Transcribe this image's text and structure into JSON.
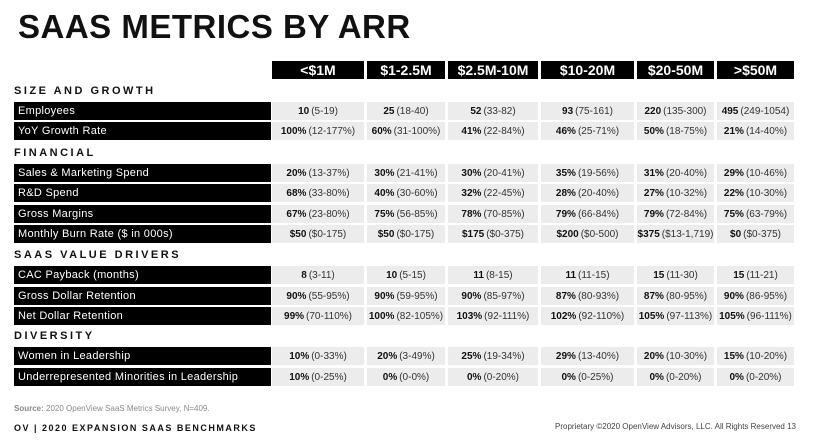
{
  "title": "SAAS METRICS BY ARR",
  "columns": [
    "<$1M",
    "$1-2.5M",
    "$2.5M-10M",
    "$10-20M",
    "$20-50M",
    ">$50M"
  ],
  "sections": [
    {
      "name": "SIZE AND GROWTH",
      "rows": [
        {
          "label": "Employees",
          "cells": [
            {
              "v": "10",
              "r": "(5-19)"
            },
            {
              "v": "25",
              "r": "(18-40)"
            },
            {
              "v": "52",
              "r": "(33-82)"
            },
            {
              "v": "93",
              "r": "(75-161)"
            },
            {
              "v": "220",
              "r": "(135-300)"
            },
            {
              "v": "495",
              "r": "(249-1054)"
            }
          ]
        },
        {
          "label": "YoY Growth Rate",
          "cells": [
            {
              "v": "100%",
              "r": "(12-177%)"
            },
            {
              "v": "60%",
              "r": "(31-100%)"
            },
            {
              "v": "41%",
              "r": "(22-84%)"
            },
            {
              "v": "46%",
              "r": "(25-71%)"
            },
            {
              "v": "50%",
              "r": "(18-75%)"
            },
            {
              "v": "21%",
              "r": "(14-40%)"
            }
          ]
        }
      ]
    },
    {
      "name": "FINANCIAL",
      "rows": [
        {
          "label": "Sales & Marketing Spend",
          "cells": [
            {
              "v": "20%",
              "r": "(13-37%)"
            },
            {
              "v": "30%",
              "r": "(21-41%)"
            },
            {
              "v": "30%",
              "r": "(20-41%)"
            },
            {
              "v": "35%",
              "r": "(19-56%)"
            },
            {
              "v": "31%",
              "r": "(20-40%)"
            },
            {
              "v": "29%",
              "r": "(10-46%)"
            }
          ]
        },
        {
          "label": "R&D Spend",
          "cells": [
            {
              "v": "68%",
              "r": "(33-80%)"
            },
            {
              "v": "40%",
              "r": "(30-60%)"
            },
            {
              "v": "32%",
              "r": "(22-45%)"
            },
            {
              "v": "28%",
              "r": "(20-40%)"
            },
            {
              "v": "27%",
              "r": "(10-32%)"
            },
            {
              "v": "22%",
              "r": "(10-30%)"
            }
          ]
        },
        {
          "label": "Gross Margins",
          "cells": [
            {
              "v": "67%",
              "r": "(23-80%)"
            },
            {
              "v": "75%",
              "r": "(56-85%)"
            },
            {
              "v": "78%",
              "r": "(70-85%)"
            },
            {
              "v": "79%",
              "r": "(66-84%)"
            },
            {
              "v": "79%",
              "r": "(72-84%)"
            },
            {
              "v": "75%",
              "r": "(63-79%)"
            }
          ]
        },
        {
          "label": "Monthly Burn Rate ($ in 000s)",
          "cells": [
            {
              "v": "$50",
              "r": "($0-175)"
            },
            {
              "v": "$50",
              "r": "($0-175)"
            },
            {
              "v": "$175",
              "r": "($0-375)"
            },
            {
              "v": "$200",
              "r": "($0-500)"
            },
            {
              "v": "$375",
              "r": "($13-1,719)"
            },
            {
              "v": "$0",
              "r": "($0-375)"
            }
          ]
        }
      ]
    },
    {
      "name": "SAAS VALUE DRIVERS",
      "rows": [
        {
          "label": "CAC Payback (months)",
          "cells": [
            {
              "v": "8",
              "r": "(3-11)"
            },
            {
              "v": "10",
              "r": "(5-15)"
            },
            {
              "v": "11",
              "r": "(8-15)"
            },
            {
              "v": "11",
              "r": "(11-15)"
            },
            {
              "v": "15",
              "r": "(11-30)"
            },
            {
              "v": "15",
              "r": "(11-21)"
            }
          ]
        },
        {
          "label": "Gross Dollar Retention",
          "cells": [
            {
              "v": "90%",
              "r": "(55-95%)"
            },
            {
              "v": "90%",
              "r": "(59-95%)"
            },
            {
              "v": "90%",
              "r": "(85-97%)"
            },
            {
              "v": "87%",
              "r": "(80-93%)"
            },
            {
              "v": "87%",
              "r": "(80-95%)"
            },
            {
              "v": "90%",
              "r": "(86-95%)"
            }
          ]
        },
        {
          "label": "Net Dollar Retention",
          "cells": [
            {
              "v": "99%",
              "r": "(70-110%)"
            },
            {
              "v": "100%",
              "r": "(82-105%)"
            },
            {
              "v": "103%",
              "r": "(92-111%)"
            },
            {
              "v": "102%",
              "r": "(92-110%)"
            },
            {
              "v": "105%",
              "r": "(97-113%)"
            },
            {
              "v": "105%",
              "r": "(96-111%)"
            }
          ]
        }
      ]
    },
    {
      "name": "DIVERSITY",
      "rows": [
        {
          "label": "Women in Leadership",
          "cells": [
            {
              "v": "10%",
              "r": "(0-33%)"
            },
            {
              "v": "20%",
              "r": "(3-49%)"
            },
            {
              "v": "25%",
              "r": "(19-34%)"
            },
            {
              "v": "29%",
              "r": "(13-40%)"
            },
            {
              "v": "20%",
              "r": "(10-30%)"
            },
            {
              "v": "15%",
              "r": "(10-20%)"
            }
          ]
        },
        {
          "label": "Underrepresented Minorities in Leadership",
          "cells": [
            {
              "v": "10%",
              "r": "(0-25%)"
            },
            {
              "v": "0%",
              "r": "(0-0%)"
            },
            {
              "v": "0%",
              "r": "(0-20%)"
            },
            {
              "v": "0%",
              "r": "(0-25%)"
            },
            {
              "v": "0%",
              "r": "(0-20%)"
            },
            {
              "v": "0%",
              "r": "(0-20%)"
            }
          ]
        }
      ]
    }
  ],
  "source_label": "Source:",
  "source_text": "2020 OpenView SaaS Metrics Survey, N=409.",
  "footer_left": "OV | 2020 EXPANSION SAAS BENCHMARKS",
  "footer_right": "Proprietary ©2020 OpenView Advisors, LLC. All Rights Reserved 13"
}
